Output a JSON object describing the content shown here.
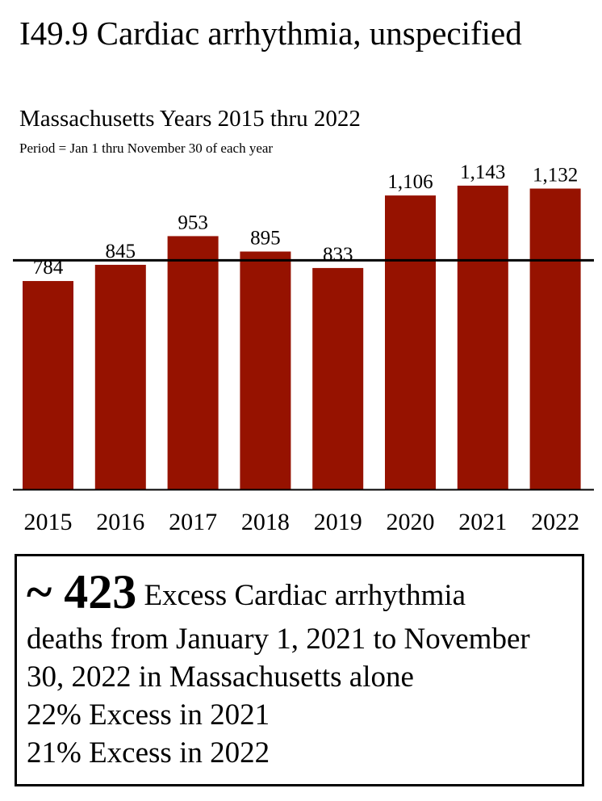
{
  "header": {
    "title": "I49.9 Cardiac arrhythmia, unspecified",
    "subtitle": "Massachusetts Years 2015 thru 2022",
    "period_note": "Period = Jan 1 thru November 30 of each year"
  },
  "chart_data": {
    "type": "bar",
    "categories": [
      "2015",
      "2016",
      "2017",
      "2018",
      "2019",
      "2020",
      "2021",
      "2022"
    ],
    "values": [
      784,
      845,
      953,
      895,
      833,
      1106,
      1143,
      1132
    ],
    "value_labels": [
      "784",
      "845",
      "953",
      "895",
      "833",
      "1,106",
      "1,143",
      "1,132"
    ],
    "ylim": [
      0,
      1240
    ],
    "baseline_average": 862,
    "title": "I49.9 Cardiac arrhythmia, unspecified",
    "subtitle": "Massachusetts Years 2015 thru 2022",
    "xlabel": "",
    "ylabel": "",
    "grid": false,
    "legend": "none",
    "colors": {
      "bar": "#961200",
      "baseline": "#000000",
      "axis": "#000000"
    }
  },
  "summary": {
    "prefix": "~ 423",
    "line1_rest": " Excess Cardiac arrhythmia",
    "line2": "deaths from January 1, 2021 to November",
    "line3": "30, 2022 in Massachusetts alone",
    "line4": "22% Excess in 2021",
    "line5": "21% Excess in 2022"
  }
}
